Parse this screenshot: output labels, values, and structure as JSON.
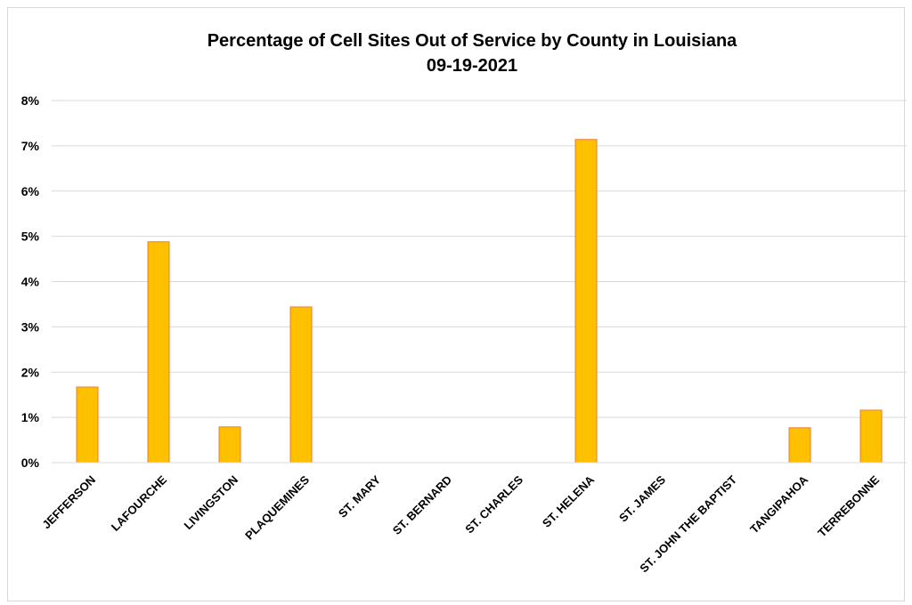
{
  "chart_data": {
    "type": "bar",
    "title": "Percentage of Cell Sites Out of Service by County in Louisiana",
    "subtitle": "09-19-2021",
    "xlabel": "",
    "ylabel": "",
    "categories": [
      "JEFFERSON",
      "LAFOURCHE",
      "LIVINGSTON",
      "PLAQUEMINES",
      "ST. MARY",
      "ST. BERNARD",
      "ST. CHARLES",
      "ST. HELENA",
      "ST. JAMES",
      "ST. JOHN THE BAPTIST",
      "TANGIPAHOA",
      "TERREBONNE"
    ],
    "values": [
      1.67,
      4.88,
      0.79,
      3.44,
      0,
      0,
      0,
      7.14,
      0,
      0,
      0.77,
      1.16
    ],
    "ylim": [
      0,
      8
    ],
    "yticks": [
      "0%",
      "1%",
      "2%",
      "3%",
      "4%",
      "5%",
      "6%",
      "7%",
      "8%"
    ],
    "grid": true,
    "legend": "none",
    "bar_fill": "#FFC000",
    "bar_stroke": "#ED7D31"
  }
}
